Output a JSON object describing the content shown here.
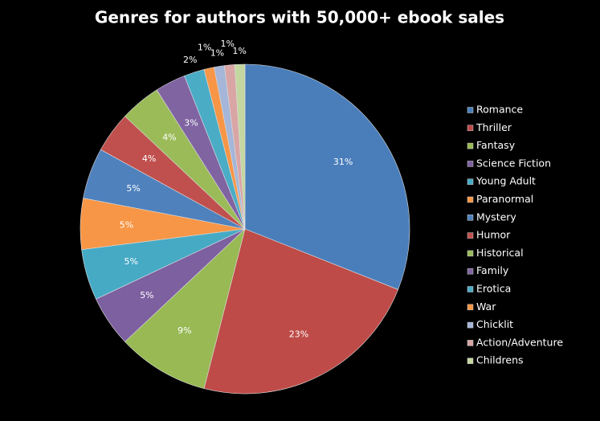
{
  "chart_data": {
    "type": "pie",
    "title": "Genres for authors with 50,000+ ebook sales",
    "categories": [
      "Romance",
      "Thriller",
      "Fantasy",
      "Science Fiction",
      "Young Adult",
      "Paranormal",
      "Mystery",
      "Humor",
      "Historical",
      "Family",
      "Erotica",
      "War",
      "Chicklit",
      "Action/Adventure",
      "Childrens"
    ],
    "values": [
      31,
      23,
      9,
      5,
      5,
      5,
      5,
      4,
      4,
      3,
      2,
      1,
      1,
      1,
      1
    ],
    "value_labels": [
      "31%",
      "23%",
      "9%",
      "5%",
      "5%",
      "5%",
      "5%",
      "4%",
      "4%",
      "3%",
      "2%",
      "1%",
      "1%",
      "1%",
      "1%"
    ],
    "colors": [
      "#4a7ebb",
      "#be4b48",
      "#98b954",
      "#7d60a0",
      "#46aac5",
      "#f79646",
      "#4f81bd",
      "#c0504d",
      "#9bbb59",
      "#8064a2",
      "#4bacc6",
      "#f79646",
      "#a5b6d8",
      "#d9a5a5",
      "#c4d7a1"
    ],
    "legend": "right"
  }
}
